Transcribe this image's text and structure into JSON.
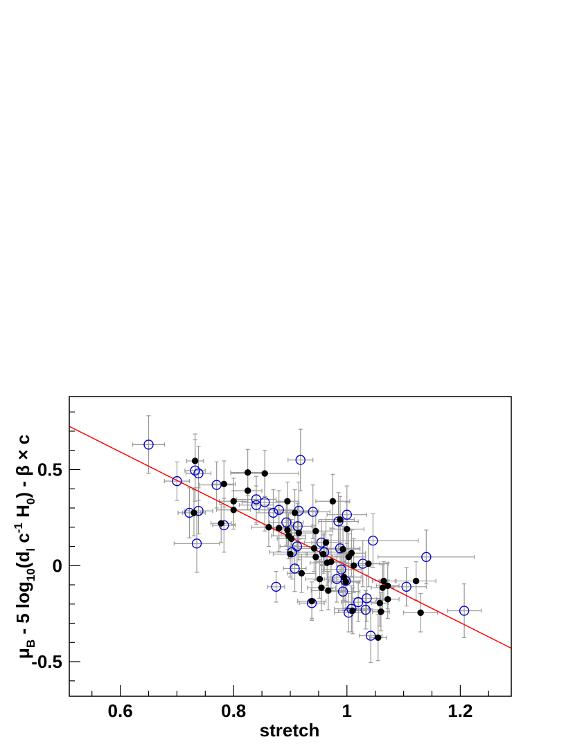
{
  "chart_data": {
    "type": "scatter",
    "xlabel": "stretch",
    "ylabel": {
      "mu": "μ",
      "mu_sub": "B",
      "mid": " - 5 log",
      "log_sub": "10",
      "paren": "(d",
      "dl_sub": "l",
      "c": " c",
      "cexp": "-1",
      "H": " H",
      "H_sub": "0",
      "tail": ") - β × c"
    },
    "xlim": [
      0.51,
      1.29
    ],
    "ylim": [
      -0.68,
      0.88
    ],
    "x_ticks": [
      0.6,
      0.8,
      1.0,
      1.2
    ],
    "x_tick_labels": [
      "0.6",
      "0.8",
      "1",
      "1.2"
    ],
    "y_ticks": [
      -0.5,
      0,
      0.5
    ],
    "y_tick_labels": [
      "-0.5",
      "0",
      "0.5"
    ],
    "grid": false,
    "fit_line": {
      "color": "#ff0000",
      "x": [
        0.51,
        1.29
      ],
      "y": [
        0.725,
        -0.43
      ]
    },
    "colors": {
      "open_marker": "#0000cc",
      "filled_marker": "#000000",
      "error_bar": "#999999"
    },
    "series": [
      {
        "marker": "open-circle",
        "points": [
          {
            "x": 0.65,
            "y": 0.63,
            "xe": 0.028,
            "ye": 0.15
          },
          {
            "x": 0.7,
            "y": 0.44,
            "xe": 0.022,
            "ye": 0.1
          },
          {
            "x": 0.722,
            "y": 0.275,
            "xe": 0.02,
            "ye": 0.13
          },
          {
            "x": 0.732,
            "y": 0.495,
            "xe": 0.018,
            "ye": 0.16
          },
          {
            "x": 0.738,
            "y": 0.48,
            "xe": 0.022,
            "ye": 0.14
          },
          {
            "x": 0.738,
            "y": 0.285,
            "xe": 0.025,
            "ye": 0.12
          },
          {
            "x": 0.735,
            "y": 0.115,
            "xe": 0.04,
            "ye": 0.15
          },
          {
            "x": 0.77,
            "y": 0.42,
            "xe": 0.03,
            "ye": 0.12
          },
          {
            "x": 0.783,
            "y": 0.21,
            "xe": 0.02,
            "ye": 0.14
          },
          {
            "x": 0.84,
            "y": 0.345,
            "xe": 0.035,
            "ye": 0.12
          },
          {
            "x": 0.84,
            "y": 0.315,
            "xe": 0.03,
            "ye": 0.1
          },
          {
            "x": 0.855,
            "y": 0.33,
            "xe": 0.04,
            "ye": 0.15
          },
          {
            "x": 0.87,
            "y": 0.275,
            "xe": 0.03,
            "ye": 0.12
          },
          {
            "x": 0.875,
            "y": -0.11,
            "xe": 0.015,
            "ye": 0.08
          },
          {
            "x": 0.88,
            "y": 0.29,
            "xe": 0.035,
            "ye": 0.1
          },
          {
            "x": 0.893,
            "y": 0.225,
            "xe": 0.03,
            "ye": 0.12
          },
          {
            "x": 0.903,
            "y": 0.07,
            "xe": 0.04,
            "ye": 0.14
          },
          {
            "x": 0.908,
            "y": -0.015,
            "xe": 0.02,
            "ye": 0.12
          },
          {
            "x": 0.912,
            "y": 0.1,
            "xe": 0.03,
            "ye": 0.1
          },
          {
            "x": 0.915,
            "y": 0.285,
            "xe": 0.035,
            "ye": 0.15
          },
          {
            "x": 0.918,
            "y": 0.55,
            "xe": 0.022,
            "ye": 0.16
          },
          {
            "x": 0.913,
            "y": 0.205,
            "xe": 0.025,
            "ye": 0.12
          },
          {
            "x": 0.938,
            "y": -0.195,
            "xe": 0.022,
            "ye": 0.08
          },
          {
            "x": 0.94,
            "y": 0.28,
            "xe": 0.03,
            "ye": 0.14
          },
          {
            "x": 0.955,
            "y": 0.12,
            "xe": 0.03,
            "ye": 0.12
          },
          {
            "x": 0.96,
            "y": 0.07,
            "xe": 0.05,
            "ye": 0.1
          },
          {
            "x": 0.982,
            "y": -0.07,
            "xe": 0.022,
            "ye": 0.12
          },
          {
            "x": 0.985,
            "y": 0.23,
            "xe": 0.035,
            "ye": 0.15
          },
          {
            "x": 0.988,
            "y": 0.09,
            "xe": 0.035,
            "ye": 0.12
          },
          {
            "x": 0.993,
            "y": -0.135,
            "xe": 0.03,
            "ye": 0.1
          },
          {
            "x": 0.99,
            "y": -0.02,
            "xe": 0.035,
            "ye": 0.12
          },
          {
            "x": 0.998,
            "y": -0.08,
            "xe": 0.03,
            "ye": 0.14
          },
          {
            "x": 1.0,
            "y": 0.265,
            "xe": 0.035,
            "ye": 0.15
          },
          {
            "x": 1.003,
            "y": -0.245,
            "xe": 0.025,
            "ye": 0.1
          },
          {
            "x": 1.008,
            "y": -0.225,
            "xe": 0.03,
            "ye": 0.12
          },
          {
            "x": 1.02,
            "y": -0.19,
            "xe": 0.03,
            "ye": 0.1
          },
          {
            "x": 1.028,
            "y": 0.01,
            "xe": 0.03,
            "ye": 0.12
          },
          {
            "x": 1.033,
            "y": -0.23,
            "xe": 0.03,
            "ye": 0.1
          },
          {
            "x": 1.035,
            "y": -0.17,
            "xe": 0.025,
            "ye": 0.12
          },
          {
            "x": 1.042,
            "y": -0.365,
            "xe": 0.02,
            "ye": 0.14
          },
          {
            "x": 1.046,
            "y": 0.13,
            "xe": 0.08,
            "ye": 0.14
          },
          {
            "x": 1.105,
            "y": -0.11,
            "xe": 0.035,
            "ye": 0.1
          },
          {
            "x": 1.14,
            "y": 0.045,
            "xe": 0.085,
            "ye": 0.14
          },
          {
            "x": 1.207,
            "y": -0.235,
            "xe": 0.03,
            "ye": 0.14
          }
        ]
      },
      {
        "marker": "filled-circle",
        "points": [
          {
            "x": 0.732,
            "y": 0.545,
            "xe": 0.015,
            "ye": 0.14
          },
          {
            "x": 0.73,
            "y": 0.275,
            "xe": 0.02,
            "ye": 0.12
          },
          {
            "x": 0.778,
            "y": 0.22,
            "xe": 0.018,
            "ye": 0.1
          },
          {
            "x": 0.783,
            "y": 0.425,
            "xe": 0.02,
            "ye": 0.12
          },
          {
            "x": 0.8,
            "y": 0.335,
            "xe": 0.025,
            "ye": 0.12
          },
          {
            "x": 0.8,
            "y": 0.29,
            "xe": 0.03,
            "ye": 0.1
          },
          {
            "x": 0.825,
            "y": 0.485,
            "xe": 0.03,
            "ye": 0.12
          },
          {
            "x": 0.825,
            "y": 0.39,
            "xe": 0.025,
            "ye": 0.1
          },
          {
            "x": 0.855,
            "y": 0.48,
            "xe": 0.06,
            "ye": 0.12
          },
          {
            "x": 0.862,
            "y": 0.2,
            "xe": 0.03,
            "ye": 0.1
          },
          {
            "x": 0.88,
            "y": 0.195,
            "xe": 0.02,
            "ye": 0.12
          },
          {
            "x": 0.895,
            "y": 0.335,
            "xe": 0.02,
            "ye": 0.1
          },
          {
            "x": 0.895,
            "y": 0.185,
            "xe": 0.025,
            "ye": 0.1
          },
          {
            "x": 0.897,
            "y": 0.155,
            "xe": 0.03,
            "ye": 0.12
          },
          {
            "x": 0.9,
            "y": 0.06,
            "xe": 0.03,
            "ye": 0.12
          },
          {
            "x": 0.902,
            "y": 0.14,
            "xe": 0.025,
            "ye": 0.1
          },
          {
            "x": 0.908,
            "y": 0.275,
            "xe": 0.025,
            "ye": 0.12
          },
          {
            "x": 0.915,
            "y": 0.17,
            "xe": 0.03,
            "ye": 0.14
          },
          {
            "x": 0.92,
            "y": -0.04,
            "xe": 0.025,
            "ye": 0.1
          },
          {
            "x": 0.938,
            "y": -0.185,
            "xe": 0.025,
            "ye": 0.1
          },
          {
            "x": 0.942,
            "y": 0.09,
            "xe": 0.03,
            "ye": 0.12
          },
          {
            "x": 0.945,
            "y": 0.18,
            "xe": 0.03,
            "ye": 0.1
          },
          {
            "x": 0.945,
            "y": 0.045,
            "xe": 0.03,
            "ye": 0.12
          },
          {
            "x": 0.952,
            "y": -0.07,
            "xe": 0.025,
            "ye": 0.1
          },
          {
            "x": 0.955,
            "y": -0.115,
            "xe": 0.025,
            "ye": 0.12
          },
          {
            "x": 0.958,
            "y": 0.06,
            "xe": 0.03,
            "ye": 0.1
          },
          {
            "x": 0.963,
            "y": 0.12,
            "xe": 0.025,
            "ye": 0.12
          },
          {
            "x": 0.965,
            "y": 0.015,
            "xe": 0.03,
            "ye": 0.12
          },
          {
            "x": 0.967,
            "y": -0.13,
            "xe": 0.03,
            "ye": 0.1
          },
          {
            "x": 0.972,
            "y": 0.02,
            "xe": 0.025,
            "ye": 0.14
          },
          {
            "x": 0.975,
            "y": 0.335,
            "xe": 0.03,
            "ye": 0.14
          },
          {
            "x": 0.988,
            "y": 0.24,
            "xe": 0.025,
            "ye": 0.12
          },
          {
            "x": 0.993,
            "y": 0.085,
            "xe": 0.03,
            "ye": 0.12
          },
          {
            "x": 0.995,
            "y": -0.06,
            "xe": 0.03,
            "ye": 0.12
          },
          {
            "x": 0.998,
            "y": -0.085,
            "xe": 0.025,
            "ye": 0.1
          },
          {
            "x": 1.0,
            "y": 0.19,
            "xe": 0.03,
            "ye": 0.14
          },
          {
            "x": 1.003,
            "y": 0.045,
            "xe": 0.03,
            "ye": 0.12
          },
          {
            "x": 1.008,
            "y": 0.065,
            "xe": 0.025,
            "ye": 0.12
          },
          {
            "x": 1.01,
            "y": -0.235,
            "xe": 0.025,
            "ye": 0.12
          },
          {
            "x": 1.012,
            "y": 0.0,
            "xe": 0.03,
            "ye": 0.14
          },
          {
            "x": 1.038,
            "y": 0.01,
            "xe": 0.035,
            "ye": 0.12
          },
          {
            "x": 1.055,
            "y": -0.375,
            "xe": 0.015,
            "ye": 0.12
          },
          {
            "x": 1.058,
            "y": -0.195,
            "xe": 0.015,
            "ye": 0.12
          },
          {
            "x": 1.06,
            "y": -0.24,
            "xe": 0.015,
            "ye": 0.1
          },
          {
            "x": 1.063,
            "y": -0.115,
            "xe": 0.02,
            "ye": 0.12
          },
          {
            "x": 1.065,
            "y": -0.08,
            "xe": 0.02,
            "ye": 0.1
          },
          {
            "x": 1.072,
            "y": -0.105,
            "xe": 0.02,
            "ye": 0.12
          },
          {
            "x": 1.072,
            "y": -0.175,
            "xe": 0.02,
            "ye": 0.1
          },
          {
            "x": 1.122,
            "y": -0.08,
            "xe": 0.035,
            "ye": 0.1
          },
          {
            "x": 1.13,
            "y": -0.245,
            "xe": 0.03,
            "ye": 0.1
          }
        ]
      }
    ]
  }
}
